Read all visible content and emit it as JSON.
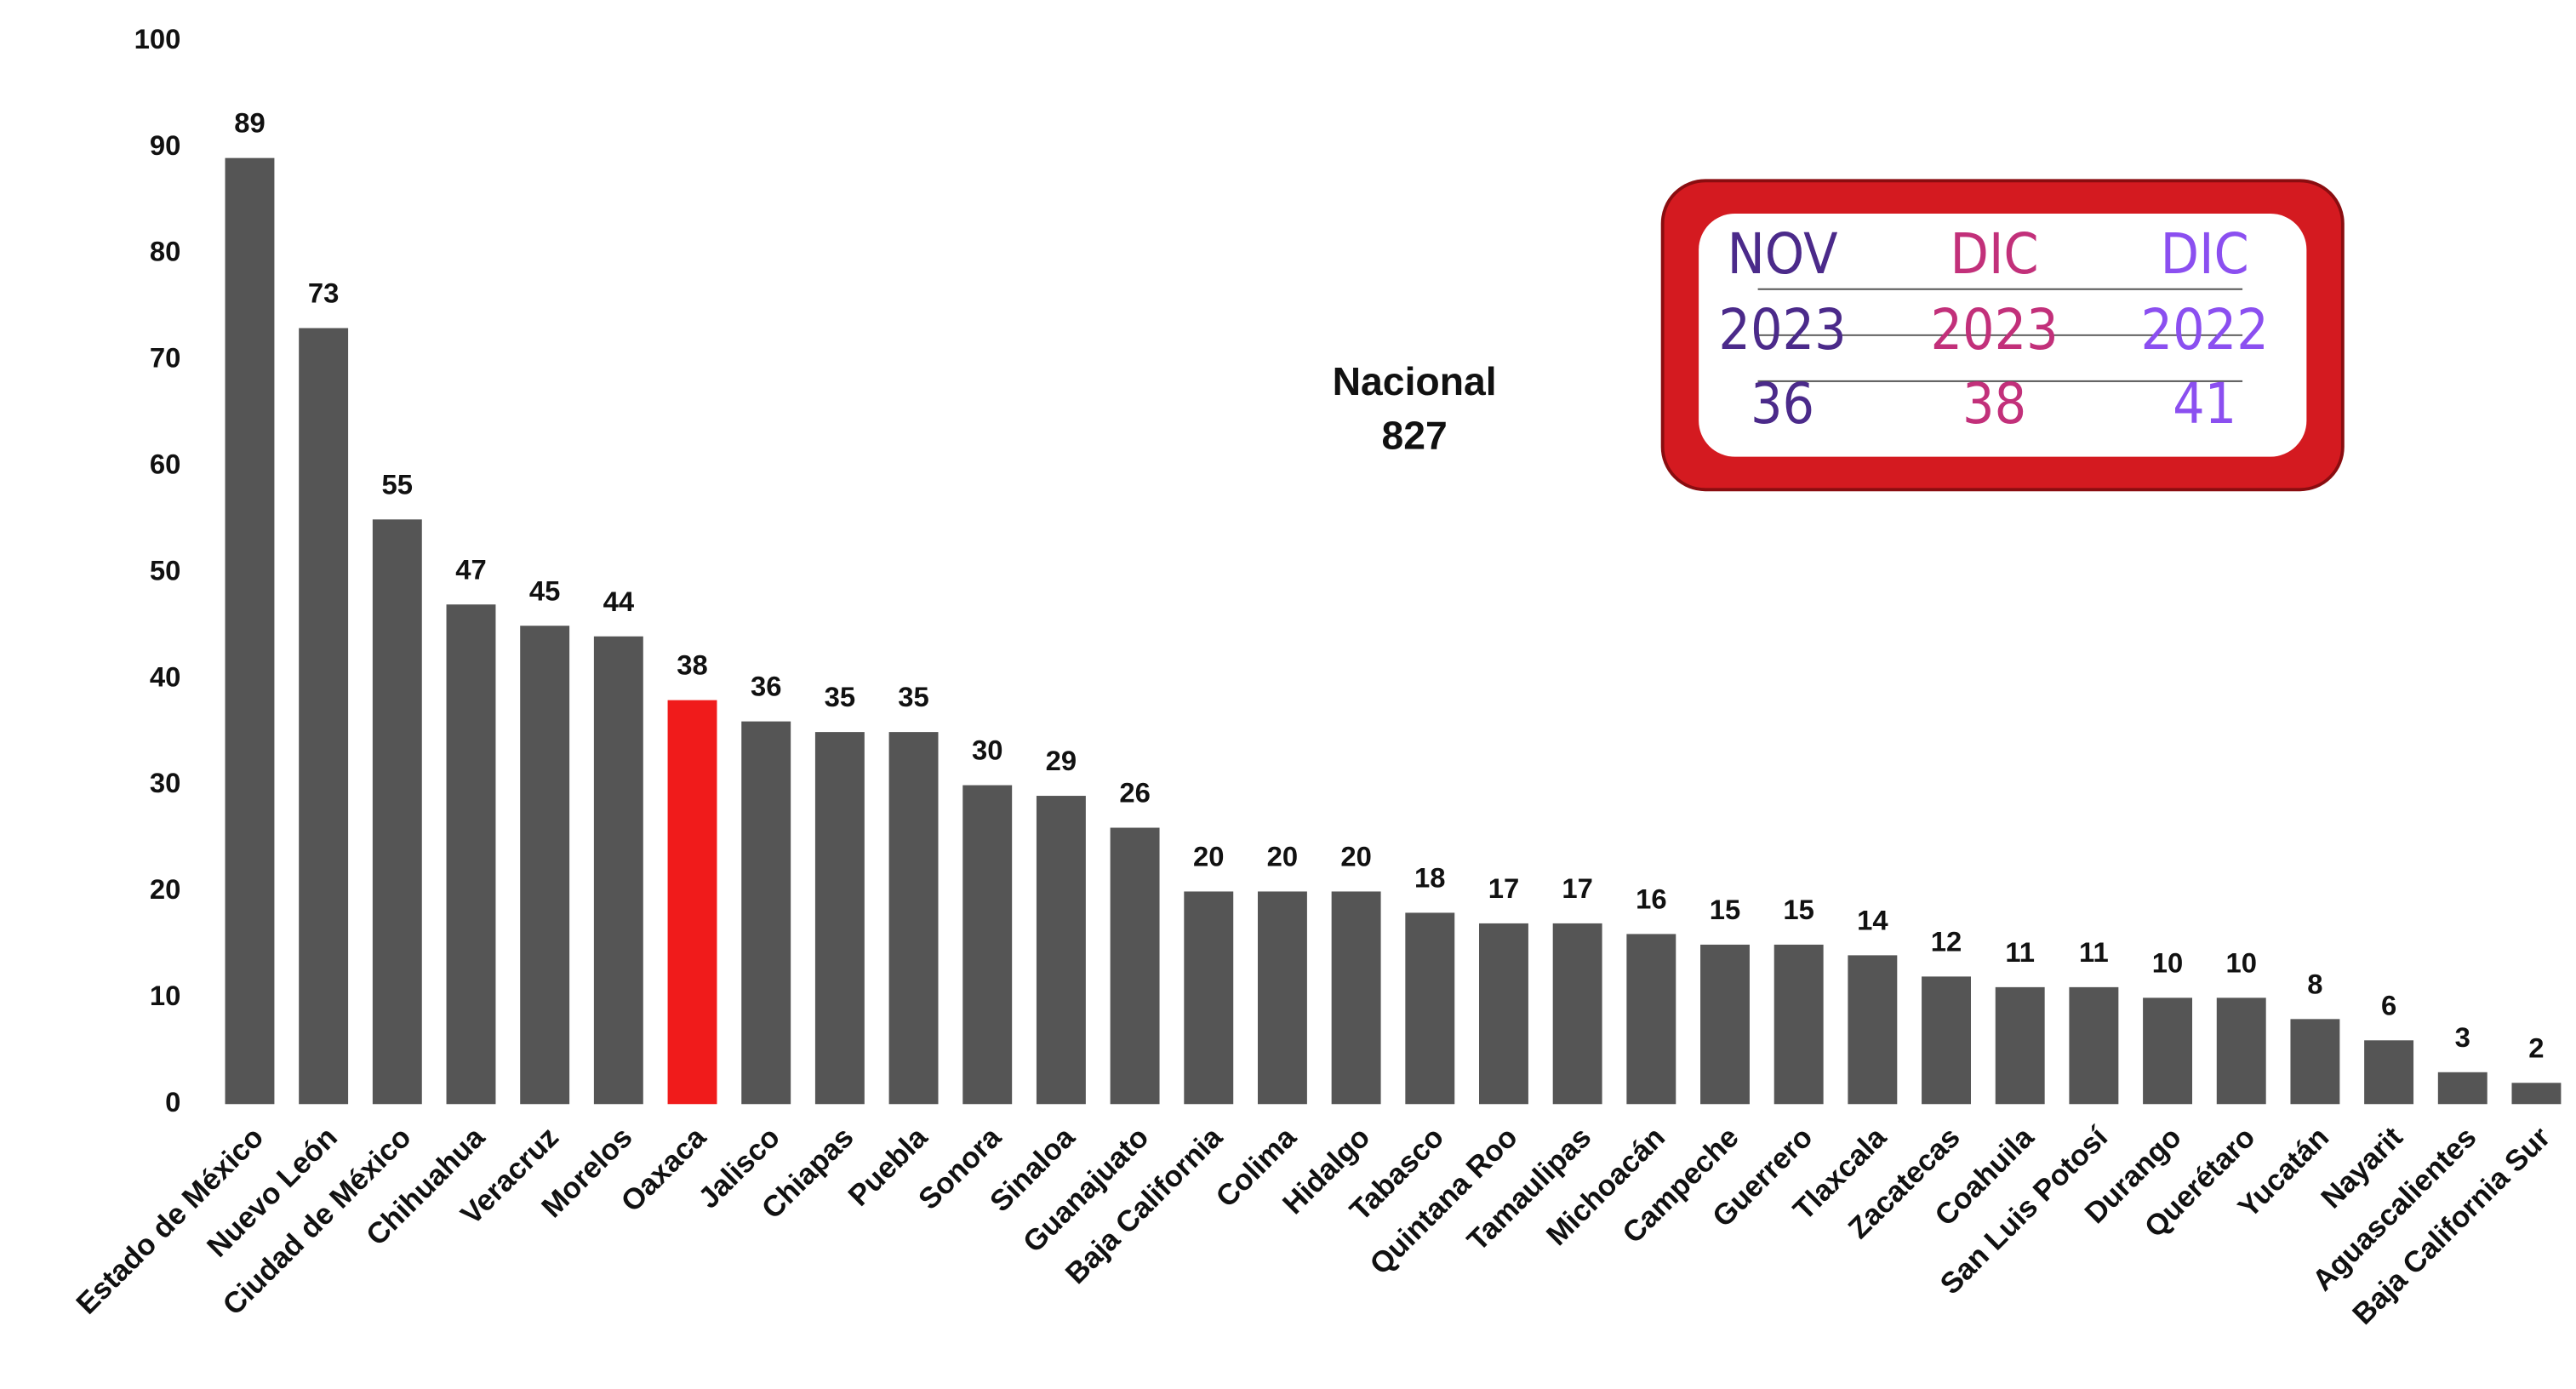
{
  "chart_data": {
    "type": "bar",
    "categories": [
      "Estado de México",
      "Nuevo León",
      "Ciudad de México",
      "Chihuahua",
      "Veracruz",
      "Morelos",
      "Oaxaca",
      "Jalisco",
      "Chiapas",
      "Puebla",
      "Sonora",
      "Sinaloa",
      "Guanajuato",
      "Baja California",
      "Colima",
      "Hidalgo",
      "Tabasco",
      "Quintana Roo",
      "Tamaulipas",
      "Michoacán",
      "Campeche",
      "Guerrero",
      "Tlaxcala",
      "Zacatecas",
      "Coahuila",
      "San Luis Potosí",
      "Durango",
      "Querétaro",
      "Yucatán",
      "Nayarit",
      "Aguascalientes",
      "Baja California Sur"
    ],
    "values": [
      89,
      73,
      55,
      47,
      45,
      44,
      38,
      36,
      35,
      35,
      30,
      29,
      26,
      20,
      20,
      20,
      18,
      17,
      17,
      16,
      15,
      15,
      14,
      12,
      11,
      11,
      10,
      10,
      8,
      6,
      3,
      2
    ],
    "colors": [
      "#555555",
      "#555555",
      "#555555",
      "#555555",
      "#555555",
      "#555555",
      "#f01b1b",
      "#555555",
      "#555555",
      "#555555",
      "#555555",
      "#555555",
      "#555555",
      "#555555",
      "#555555",
      "#555555",
      "#555555",
      "#555555",
      "#555555",
      "#555555",
      "#555555",
      "#555555",
      "#555555",
      "#555555",
      "#555555",
      "#555555",
      "#555555",
      "#555555",
      "#555555",
      "#555555",
      "#555555",
      "#555555"
    ],
    "ylim": [
      0,
      100
    ],
    "yticks": [
      0,
      10,
      20,
      30,
      40,
      50,
      60,
      70,
      80,
      90,
      100
    ],
    "annotation": {
      "title": "Nacional",
      "value": 827
    },
    "comparison": [
      {
        "month": "NOV",
        "year": 2023,
        "value": 36,
        "color": "#4b2a8a"
      },
      {
        "month": "DIC",
        "year": 2023,
        "value": 38,
        "color": "#c2307a"
      },
      {
        "month": "DIC",
        "year": 2022,
        "value": 41,
        "color": "#8b4ff0"
      }
    ]
  }
}
